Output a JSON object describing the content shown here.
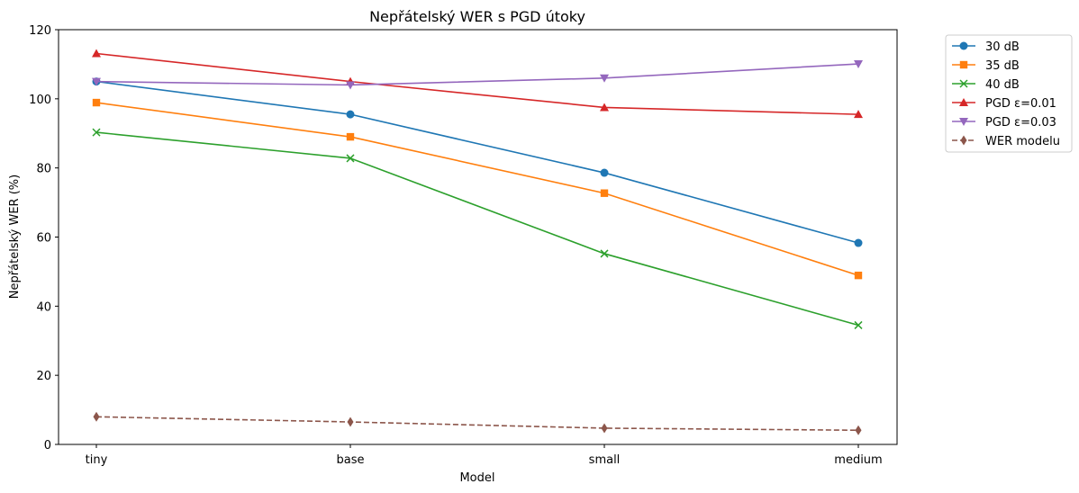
{
  "chart_data": {
    "type": "line",
    "title": "Nepřátelský WER s PGD útoky",
    "xlabel": "Model",
    "ylabel": "Nepřátelský WER (%)",
    "categories": [
      "tiny",
      "base",
      "small",
      "medium"
    ],
    "ylim": [
      0,
      120
    ],
    "yticks": [
      0,
      20,
      40,
      60,
      80,
      100,
      120
    ],
    "yticklabels": [
      "0",
      "20",
      "40",
      "60",
      "80",
      "100",
      "120"
    ],
    "grid": false,
    "legend_position": "outside-top-right",
    "series": [
      {
        "name": "30 dB",
        "values": [
          105.0,
          95.5,
          78.6,
          58.3
        ],
        "color": "#1f77b4",
        "marker": "circle",
        "dashed": false
      },
      {
        "name": "35 dB",
        "values": [
          98.9,
          89.0,
          72.7,
          48.9
        ],
        "color": "#ff7f0e",
        "marker": "square",
        "dashed": false
      },
      {
        "name": "40 dB",
        "values": [
          90.3,
          82.8,
          55.2,
          34.5
        ],
        "color": "#2ca02c",
        "marker": "x",
        "dashed": false
      },
      {
        "name": "PGD ε=0.01",
        "values": [
          113.1,
          105.0,
          97.5,
          95.5
        ],
        "color": "#d62728",
        "marker": "triangle-up",
        "dashed": false
      },
      {
        "name": "PGD ε=0.03",
        "values": [
          105.0,
          104.0,
          106.0,
          110.1
        ],
        "color": "#9467bd",
        "marker": "triangle-down",
        "dashed": false
      },
      {
        "name": "WER modelu",
        "values": [
          8.0,
          6.5,
          4.7,
          4.1
        ],
        "color": "#8c564b",
        "marker": "diamond",
        "dashed": true
      }
    ]
  }
}
